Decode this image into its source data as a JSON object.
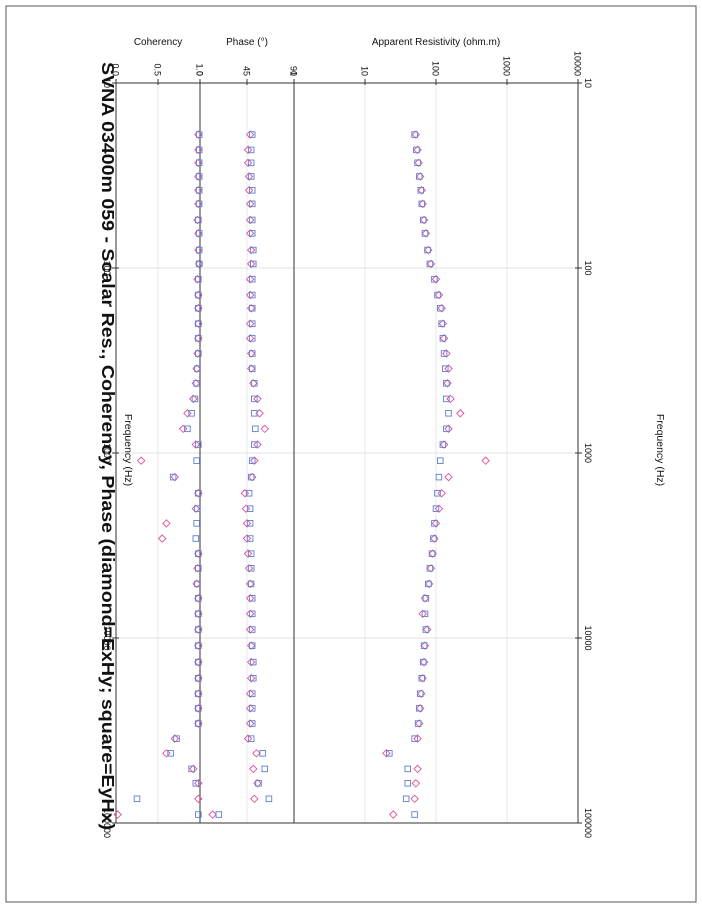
{
  "title": "SVNA 03400m 059 - Scalar Res., Coherency, Phase (diamond=ExHy; square=EyHx)",
  "colors": {
    "exhy": "#e0509a",
    "eyhx": "#5a7fd0",
    "axis": "#333333",
    "grid": "#d8d8d8",
    "text": "#111111"
  },
  "chart_data": {
    "type": "scatter",
    "rotated": "90deg-clockwise",
    "x_axis": {
      "label": "Frequency (Hz)",
      "scale": "log",
      "range": [
        10,
        100000
      ],
      "ticks": [
        10,
        100,
        1000,
        10000,
        100000
      ],
      "tick_labels": [
        "10",
        "100",
        "1000",
        "10000",
        "100000"
      ],
      "top_label": "Frequency (Hz)",
      "bottom_label": "Frequency (Hz)"
    },
    "panels": [
      {
        "id": "resistivity",
        "ylabel": "Apparent Resistivity (ohm.m)",
        "scale": "log",
        "ylim": [
          1,
          10000
        ],
        "ticks": [
          1,
          10,
          100,
          1000,
          10000
        ],
        "tick_labels": [
          "1",
          "10",
          "100",
          "1000",
          "10000"
        ]
      },
      {
        "id": "phase",
        "ylabel": "Phase (°)",
        "scale": "linear",
        "ylim": [
          0,
          90
        ],
        "ticks": [
          0,
          45,
          90
        ],
        "tick_labels": [
          "0",
          "45",
          "90"
        ]
      },
      {
        "id": "coherency",
        "ylabel": "Coherency",
        "scale": "linear",
        "ylim": [
          0,
          1
        ],
        "ticks": [
          0,
          0.5,
          1
        ],
        "tick_labels": [
          "0.0",
          "0.5",
          "1.0"
        ]
      }
    ],
    "legend": [
      {
        "name": "ExHy",
        "marker": "diamond"
      },
      {
        "name": "EyHx",
        "marker": "square"
      }
    ],
    "series": [
      {
        "name": "ExHy",
        "marker": "diamond",
        "frequency": [
          19,
          23,
          27,
          32,
          38,
          45,
          55,
          65,
          80,
          95,
          115,
          140,
          165,
          200,
          240,
          290,
          350,
          420,
          510,
          610,
          740,
          900,
          1100,
          1350,
          1650,
          2000,
          2400,
          2900,
          3500,
          4200,
          5100,
          6100,
          7400,
          9000,
          11000,
          13500,
          16500,
          20000,
          24000,
          29000,
          35000,
          42000,
          51000,
          61000,
          74000,
          90000
        ],
        "resistivity": [
          52,
          55,
          57,
          60,
          63,
          65,
          68,
          72,
          78,
          85,
          100,
          110,
          120,
          125,
          130,
          140,
          150,
          145,
          160,
          220,
          150,
          130,
          500,
          150,
          120,
          110,
          100,
          95,
          90,
          85,
          80,
          70,
          65,
          75,
          70,
          68,
          65,
          62,
          60,
          58,
          55,
          20,
          55,
          52,
          50,
          25
        ],
        "phase": [
          48,
          46,
          46,
          47,
          47,
          48,
          48,
          48,
          49,
          49,
          48,
          48,
          49,
          48,
          48,
          49,
          49,
          51,
          55,
          57,
          62,
          55,
          52,
          50,
          43,
          44,
          45,
          45,
          46,
          47,
          48,
          48,
          48,
          48,
          49,
          49,
          49,
          48,
          48,
          48,
          46,
          54,
          51,
          55,
          52,
          12
        ],
        "coherency": [
          0.98,
          0.98,
          0.98,
          0.98,
          0.98,
          0.98,
          0.97,
          0.98,
          0.98,
          0.99,
          0.97,
          0.98,
          0.98,
          0.98,
          0.98,
          0.97,
          0.96,
          0.95,
          0.92,
          0.85,
          0.8,
          0.95,
          0.3,
          0.7,
          0.98,
          0.95,
          0.6,
          0.55,
          0.98,
          0.97,
          0.96,
          0.98,
          0.98,
          0.98,
          0.98,
          0.98,
          0.98,
          0.98,
          0.98,
          0.98,
          0.7,
          0.6,
          0.92,
          0.98,
          0.98,
          0.02
        ]
      },
      {
        "name": "EyHx",
        "marker": "square",
        "frequency": [
          19,
          23,
          27,
          32,
          38,
          45,
          55,
          65,
          80,
          95,
          115,
          140,
          165,
          200,
          240,
          290,
          350,
          420,
          510,
          610,
          740,
          900,
          1100,
          1350,
          1650,
          2000,
          2400,
          2900,
          3500,
          4200,
          5100,
          6100,
          7400,
          9000,
          11000,
          13500,
          16500,
          20000,
          24000,
          29000,
          35000,
          42000,
          51000,
          61000,
          74000,
          90000
        ],
        "resistivity": [
          50,
          53,
          55,
          58,
          61,
          63,
          66,
          70,
          76,
          82,
          95,
          105,
          115,
          120,
          125,
          130,
          135,
          140,
          140,
          150,
          140,
          125,
          115,
          110,
          105,
          100,
          95,
          92,
          88,
          82,
          78,
          72,
          70,
          72,
          68,
          66,
          63,
          60,
          58,
          56,
          50,
          22,
          40,
          40,
          38,
          50
        ],
        "phase": [
          50,
          49,
          49,
          49,
          50,
          50,
          50,
          50,
          51,
          51,
          50,
          50,
          50,
          50,
          50,
          50,
          50,
          52,
          52,
          52,
          53,
          52,
          50,
          49,
          47,
          48,
          48,
          48,
          49,
          49,
          49,
          50,
          50,
          50,
          50,
          51,
          51,
          50,
          50,
          50,
          49,
          60,
          62,
          56,
          66,
          18
        ],
        "coherency": [
          0.99,
          0.99,
          0.99,
          0.99,
          0.99,
          0.99,
          0.98,
          0.99,
          0.99,
          0.99,
          0.98,
          0.98,
          0.98,
          0.98,
          0.98,
          0.98,
          0.97,
          0.96,
          0.94,
          0.9,
          0.85,
          0.98,
          0.96,
          0.68,
          0.98,
          0.97,
          0.96,
          0.95,
          0.98,
          0.98,
          0.97,
          0.98,
          0.98,
          0.98,
          0.98,
          0.98,
          0.98,
          0.98,
          0.98,
          0.98,
          0.72,
          0.65,
          0.9,
          0.95,
          0.25,
          0.98
        ]
      }
    ]
  }
}
